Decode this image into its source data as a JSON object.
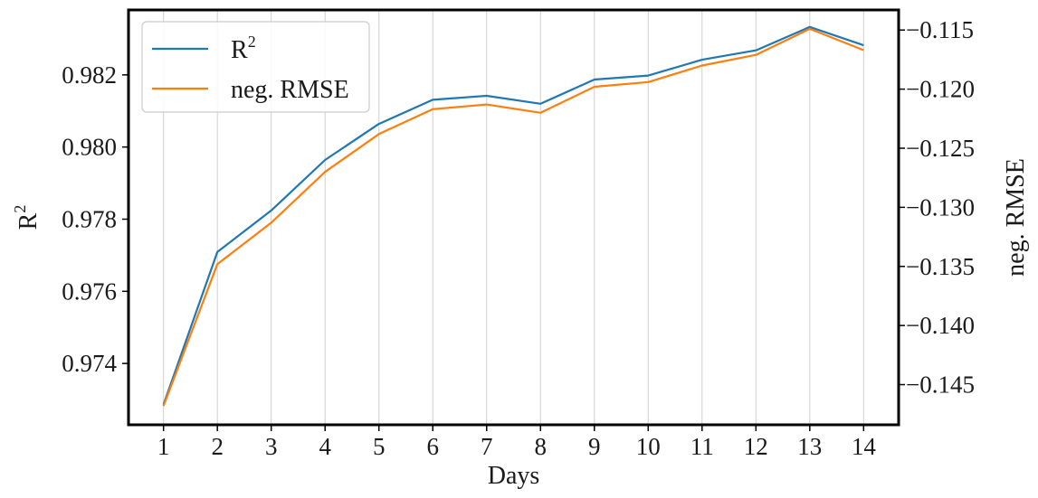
{
  "chart_data": {
    "type": "line",
    "x": [
      1,
      2,
      3,
      4,
      5,
      6,
      7,
      8,
      9,
      10,
      11,
      12,
      13,
      14
    ],
    "xlabel": "Days",
    "x_tick_labels": [
      "1",
      "2",
      "3",
      "4",
      "5",
      "6",
      "7",
      "8",
      "9",
      "10",
      "11",
      "12",
      "13",
      "14"
    ],
    "grid": "vertical",
    "legend_position": "top-left",
    "left_axis": {
      "label_base": "R",
      "label_sup": "2",
      "ylim": [
        0.9723,
        0.9838
      ],
      "ticks": [
        0.974,
        0.976,
        0.978,
        0.98,
        0.982
      ],
      "tick_labels": [
        "0.974",
        "0.976",
        "0.978",
        "0.980",
        "0.982"
      ]
    },
    "right_axis": {
      "label": "neg. RMSE",
      "ylim": [
        -0.1484,
        -0.1133
      ],
      "ticks": [
        -0.145,
        -0.14,
        -0.135,
        -0.13,
        -0.125,
        -0.12,
        -0.115
      ],
      "tick_labels": [
        "−0.145",
        "−0.140",
        "−0.135",
        "−0.130",
        "−0.125",
        "−0.120",
        "−0.115"
      ]
    },
    "series": [
      {
        "name_base": "R",
        "name_sup": "2",
        "axis": "left",
        "color": "#1f77b4",
        "values": [
          0.97286,
          0.97709,
          0.97824,
          0.97964,
          0.98064,
          0.98131,
          0.98142,
          0.9812,
          0.98187,
          0.98198,
          0.98242,
          0.98268,
          0.98333,
          0.98282
        ]
      },
      {
        "name": "neg. RMSE",
        "axis": "right",
        "color": "#ff7f0e",
        "values": [
          -0.1468,
          -0.1348,
          -0.1313,
          -0.127,
          -0.1238,
          -0.1217,
          -0.1213,
          -0.122,
          -0.1198,
          -0.1194,
          -0.118,
          -0.1171,
          -0.1149,
          -0.1167
        ]
      }
    ]
  }
}
